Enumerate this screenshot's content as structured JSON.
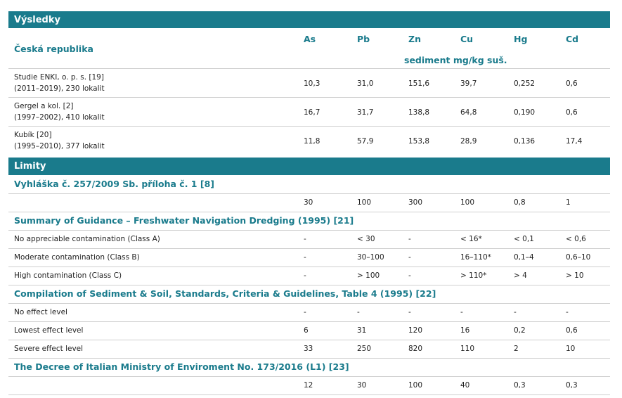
{
  "results": {
    "title": "Výsledky",
    "country": "Česká republika",
    "columns": [
      "As",
      "Pb",
      "Zn",
      "Cu",
      "Hg",
      "Cd"
    ],
    "unit": "sediment mg/kg suš.",
    "rows": [
      {
        "source": [
          "Studie ENKI, o. p. s. [19]",
          "(2011–2019), 230 lokalit"
        ],
        "values": [
          "10,3",
          "31,0",
          "151,6",
          "39,7",
          "0,252",
          "0,6"
        ]
      },
      {
        "source": [
          "Gergel a kol. [2]",
          "(1997–2002), 410 lokalit"
        ],
        "values": [
          "16,7",
          "31,7",
          "138,8",
          "64,8",
          "0,190",
          "0,6"
        ]
      },
      {
        "source": [
          "Kubík [20]",
          "(1995–2010), 377 lokalit"
        ],
        "values": [
          "11,8",
          "57,9",
          "153,8",
          "28,9",
          "0,136",
          "17,4"
        ]
      }
    ]
  },
  "limits": {
    "title": "Limity",
    "sections": [
      {
        "title": "Vyhláška č. 257/2009 Sb. příloha č. 1 [8]",
        "rows": [
          {
            "values": [
              "30",
              "100",
              "300",
              "100",
              "0,8",
              "1"
            ]
          }
        ]
      },
      {
        "title": "Summary of Guidance – Freshwater Navigation Dredging (1995) [21]",
        "rows": [
          {
            "label": "No appreciable contamination (Class A)",
            "values": [
              "-",
              "< 30",
              "-",
              "< 16*",
              "< 0,1",
              "< 0,6"
            ]
          },
          {
            "label": "Moderate contamination (Class B)",
            "values": [
              "-",
              "30–100",
              "-",
              "16–110*",
              "0,1–4",
              "0,6–10"
            ]
          },
          {
            "label": "High contamination (Class C)",
            "values": [
              "-",
              "> 100",
              "-",
              "> 110*",
              "> 4",
              "> 10"
            ]
          }
        ]
      },
      {
        "title": "Compilation of Sediment & Soil, Standards, Criteria & Guidelines, Table 4 (1995) [22]",
        "rows": [
          {
            "label": "No effect level",
            "values": [
              "-",
              "-",
              "-",
              "-",
              "-",
              "-"
            ]
          },
          {
            "label": "Lowest effect level",
            "values": [
              "6",
              "31",
              "120",
              "16",
              "0,2",
              "0,6"
            ]
          },
          {
            "label": "Severe effect level",
            "values": [
              "33",
              "250",
              "820",
              "110",
              "2",
              "10"
            ]
          }
        ]
      },
      {
        "title": "The Decree of Italian Ministry of Enviroment No. 173/2016 (L1) [23]",
        "rows": [
          {
            "values": [
              "12",
              "30",
              "100",
              "40",
              "0,3",
              "0,3"
            ]
          }
        ]
      }
    ]
  }
}
